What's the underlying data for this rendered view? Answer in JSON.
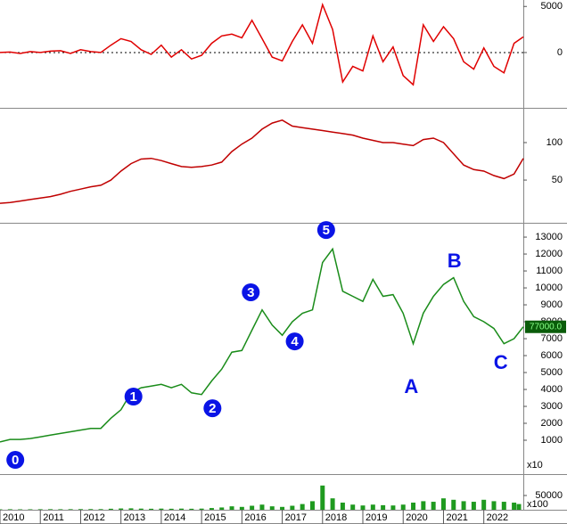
{
  "chart_data": [
    {
      "type": "line",
      "color": "#e00000",
      "zero_line": true,
      "x": [
        2010,
        2010.25,
        2010.5,
        2010.75,
        2011,
        2011.25,
        2011.5,
        2011.75,
        2012,
        2012.25,
        2012.5,
        2012.75,
        2013,
        2013.25,
        2013.5,
        2013.75,
        2014,
        2014.25,
        2014.5,
        2014.75,
        2015,
        2015.25,
        2015.5,
        2015.75,
        2016,
        2016.25,
        2016.5,
        2016.75,
        2017,
        2017.25,
        2017.5,
        2017.75,
        2018,
        2018.25,
        2018.5,
        2018.75,
        2019,
        2019.25,
        2019.5,
        2019.75,
        2020,
        2020.25,
        2020.5,
        2020.75,
        2021,
        2021.25,
        2021.5,
        2021.75,
        2022,
        2022.25,
        2022.5,
        2022.75,
        2022.98
      ],
      "values": [
        0,
        50,
        -100,
        100,
        0,
        150,
        200,
        -100,
        300,
        100,
        0,
        800,
        1500,
        1200,
        300,
        -200,
        800,
        -500,
        300,
        -700,
        -300,
        1000,
        1800,
        2000,
        1600,
        3500,
        1500,
        -500,
        -900,
        1200,
        3000,
        1000,
        5200,
        2500,
        -3200,
        -1500,
        -2000,
        1800,
        -1000,
        600,
        -2500,
        -3500,
        3000,
        1200,
        2800,
        1500,
        -1000,
        -1800,
        500,
        -1500,
        -2200,
        1000,
        1700
      ],
      "xlim": [
        2010,
        2022.98
      ],
      "ylim": [
        -6000,
        5700
      ],
      "yticks": [
        5000,
        0
      ]
    },
    {
      "type": "line",
      "color": "#c00000",
      "x": [
        2010,
        2010.25,
        2010.5,
        2010.75,
        2011,
        2011.25,
        2011.5,
        2011.75,
        2012,
        2012.25,
        2012.5,
        2012.75,
        2013,
        2013.25,
        2013.5,
        2013.75,
        2014,
        2014.25,
        2014.5,
        2014.75,
        2015,
        2015.25,
        2015.5,
        2015.75,
        2016,
        2016.25,
        2016.5,
        2016.75,
        2017,
        2017.25,
        2017.5,
        2017.75,
        2018,
        2018.25,
        2018.5,
        2018.75,
        2019,
        2019.25,
        2019.5,
        2019.75,
        2020,
        2020.25,
        2020.5,
        2020.75,
        2021,
        2021.25,
        2021.5,
        2021.75,
        2022,
        2022.25,
        2022.5,
        2022.75,
        2022.98
      ],
      "values": [
        19,
        20,
        22,
        24,
        26,
        28,
        31,
        35,
        38,
        41,
        43,
        50,
        62,
        72,
        78,
        79,
        76,
        72,
        68,
        67,
        68,
        70,
        74,
        88,
        98,
        106,
        118,
        126,
        130,
        122,
        120,
        118,
        116,
        114,
        112,
        110,
        106,
        103,
        100,
        100,
        98,
        96,
        104,
        106,
        100,
        85,
        70,
        64,
        62,
        56,
        52,
        58,
        79
      ],
      "xlim": [
        2010,
        2022.98
      ],
      "ylim": [
        -7,
        144
      ],
      "yticks": [
        100,
        50
      ]
    },
    {
      "type": "line",
      "color": "#1a8c1a",
      "x": [
        2010,
        2010.25,
        2010.5,
        2010.75,
        2011,
        2011.25,
        2011.5,
        2011.75,
        2012,
        2012.25,
        2012.5,
        2012.75,
        2013,
        2013.25,
        2013.5,
        2013.75,
        2014,
        2014.25,
        2014.5,
        2014.75,
        2015,
        2015.25,
        2015.5,
        2015.75,
        2016,
        2016.25,
        2016.5,
        2016.75,
        2017,
        2017.25,
        2017.5,
        2017.75,
        2018,
        2018.25,
        2018.5,
        2018.75,
        2019,
        2019.25,
        2019.5,
        2019.75,
        2020,
        2020.25,
        2020.5,
        2020.75,
        2021,
        2021.25,
        2021.5,
        2021.75,
        2022,
        2022.25,
        2022.5,
        2022.75,
        2022.98
      ],
      "values": [
        900,
        1050,
        1050,
        1100,
        1200,
        1300,
        1400,
        1500,
        1600,
        1700,
        1700,
        2300,
        2800,
        3800,
        4100,
        4200,
        4300,
        4100,
        4300,
        3800,
        3700,
        4500,
        5200,
        6200,
        6300,
        7500,
        8700,
        7800,
        7200,
        8000,
        8500,
        8700,
        11500,
        12300,
        9800,
        9500,
        9200,
        10500,
        9500,
        9600,
        8500,
        6700,
        8500,
        9500,
        10200,
        10600,
        9200,
        8300,
        8000,
        7600,
        6700,
        7000,
        7700
      ],
      "xlim": [
        2010,
        2022.98
      ],
      "ylim": [
        -1000,
        13740
      ],
      "yticks": [
        1000,
        2000,
        3000,
        4000,
        5000,
        6000,
        7000,
        8000,
        9000,
        10000,
        11000,
        12000,
        13000
      ],
      "price_tag": "77000.0",
      "scale_note": "x10",
      "annotations": [
        {
          "text": "0",
          "x": 2010.38,
          "y": -160,
          "style": "circled"
        },
        {
          "text": "1",
          "x": 2013.31,
          "y": 3580,
          "style": "circled"
        },
        {
          "text": "2",
          "x": 2015.27,
          "y": 2890,
          "style": "circled"
        },
        {
          "text": "3",
          "x": 2016.22,
          "y": 9740,
          "style": "circled"
        },
        {
          "text": "4",
          "x": 2017.31,
          "y": 6840,
          "style": "circled"
        },
        {
          "text": "5",
          "x": 2018.09,
          "y": 13420,
          "style": "circled"
        },
        {
          "text": "A",
          "x": 2020.2,
          "y": 4100,
          "style": "plain"
        },
        {
          "text": "B",
          "x": 2021.27,
          "y": 11530,
          "style": "plain"
        },
        {
          "text": "C",
          "x": 2022.42,
          "y": 5530,
          "style": "plain"
        }
      ]
    },
    {
      "type": "bar",
      "color": "#1f9a1f",
      "x": [
        2010,
        2010.25,
        2010.5,
        2010.75,
        2011,
        2011.25,
        2011.5,
        2011.75,
        2012,
        2012.25,
        2012.5,
        2012.75,
        2013,
        2013.25,
        2013.5,
        2013.75,
        2014,
        2014.25,
        2014.5,
        2014.75,
        2015,
        2015.25,
        2015.5,
        2015.75,
        2016,
        2016.25,
        2016.5,
        2016.75,
        2017,
        2017.25,
        2017.5,
        2017.75,
        2018,
        2018.25,
        2018.5,
        2018.75,
        2019,
        2019.25,
        2019.5,
        2019.75,
        2020,
        2020.25,
        2020.5,
        2020.75,
        2021,
        2021.25,
        2021.5,
        2021.75,
        2022,
        2022.25,
        2022.5,
        2022.75,
        2022.98
      ],
      "values": [
        1500,
        1800,
        1500,
        1600,
        1800,
        2000,
        1800,
        2000,
        2200,
        2300,
        2200,
        3500,
        4500,
        5000,
        4000,
        3500,
        4000,
        3500,
        4000,
        3500,
        4000,
        6000,
        8000,
        12000,
        10000,
        14000,
        18000,
        12000,
        10000,
        14000,
        20000,
        30000,
        85000,
        40000,
        25000,
        18000,
        15000,
        18000,
        16000,
        15000,
        18000,
        25000,
        30000,
        28000,
        40000,
        35000,
        30000,
        28000,
        35000,
        30000,
        28000,
        25000,
        20000
      ],
      "xlim": [
        2010,
        2022.98
      ],
      "ylim": [
        0,
        122000
      ],
      "yticks": [
        50000
      ],
      "scale_note": "x100",
      "xticks": [
        2010,
        2011,
        2012,
        2013,
        2014,
        2015,
        2016,
        2017,
        2018,
        2019,
        2020,
        2021,
        2022
      ]
    }
  ]
}
